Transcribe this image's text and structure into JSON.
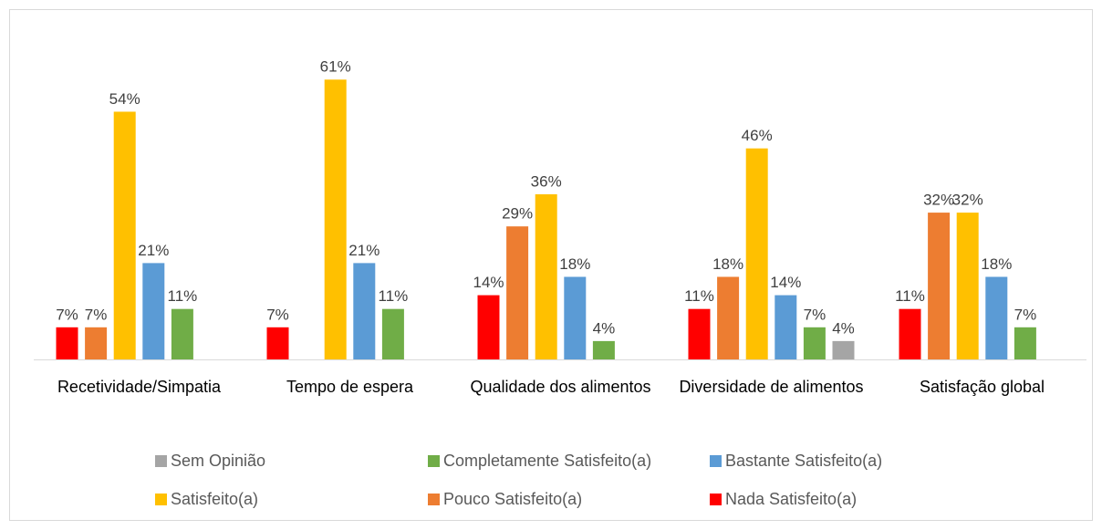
{
  "chart_data": {
    "type": "bar",
    "categories": [
      "Recetividade/Simpatia",
      "Tempo de espera",
      "Qualidade dos alimentos",
      "Diversidade de alimentos",
      "Satisfação global"
    ],
    "series": [
      {
        "name": "Nada Satisfeito(a)",
        "color": "#ff0000",
        "values": [
          7,
          7,
          14,
          11,
          11
        ],
        "value_labels": [
          "7%",
          "7%",
          "14%",
          "11%",
          "11%"
        ]
      },
      {
        "name": "Pouco Satisfeito(a)",
        "color": "#ed7d31",
        "values": [
          7,
          null,
          29,
          18,
          32
        ],
        "value_labels": [
          "7%",
          null,
          "29%",
          "18%",
          "32%"
        ]
      },
      {
        "name": "Satisfeito(a)",
        "color": "#ffc000",
        "values": [
          54,
          61,
          36,
          46,
          32
        ],
        "value_labels": [
          "54%",
          "61%",
          "36%",
          "46%",
          "32%"
        ]
      },
      {
        "name": "Bastante Satisfeito(a)",
        "color": "#5b9bd5",
        "values": [
          21,
          21,
          18,
          14,
          18
        ],
        "value_labels": [
          "21%",
          "21%",
          "18%",
          "14%",
          "18%"
        ]
      },
      {
        "name": "Completamente Satisfeito(a)",
        "color": "#70ad47",
        "values": [
          11,
          11,
          4,
          7,
          7
        ],
        "value_labels": [
          "11%",
          "11%",
          "4%",
          "7%",
          "7%"
        ]
      },
      {
        "name": "Sem Opinião",
        "color": "#a5a5a5",
        "values": [
          null,
          null,
          null,
          4,
          null
        ],
        "value_labels": [
          null,
          null,
          null,
          "4%",
          null
        ]
      }
    ],
    "ylim": [
      0,
      70
    ]
  }
}
